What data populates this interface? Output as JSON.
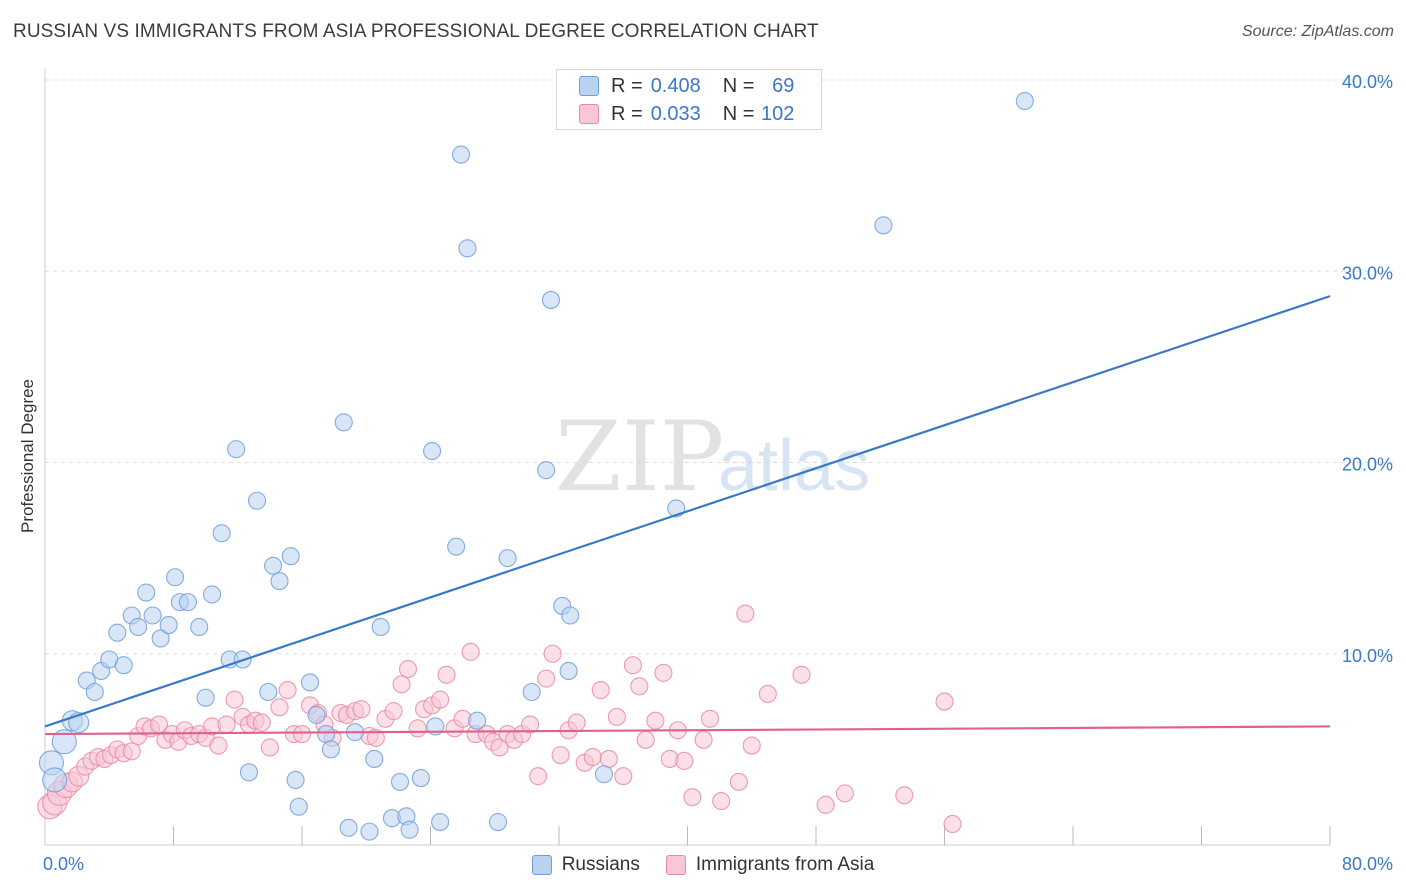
{
  "header": {
    "title": "RUSSIAN VS IMMIGRANTS FROM ASIA PROFESSIONAL DEGREE CORRELATION CHART",
    "source": "Source: ZipAtlas.com"
  },
  "watermark": {
    "zip": "ZIP",
    "atlas": "atlas"
  },
  "legend": {
    "r_label": "R =",
    "n_label": "N =",
    "rows": [
      {
        "series": "Russians",
        "r": "0.408",
        "n": "69",
        "color": "#6f9fd8"
      },
      {
        "series": "Immigrants from Asia",
        "r": "0.033",
        "n": "102",
        "color": "#e88aa8"
      }
    ]
  },
  "bottom_legend": {
    "items": [
      "Russians",
      "Immigrants from Asia"
    ]
  },
  "chart_data": {
    "type": "scatter",
    "title": "RUSSIAN VS IMMIGRANTS FROM ASIA PROFESSIONAL DEGREE CORRELATION CHART",
    "xlabel": "",
    "ylabel": "Professional Degree",
    "xlim": [
      0,
      80
    ],
    "ylim": [
      0,
      40
    ],
    "x_tick_labels": [
      "0.0%",
      "80.0%"
    ],
    "y_ticks": [
      10,
      20,
      30,
      40
    ],
    "y_tick_labels": [
      "10.0%",
      "20.0%",
      "30.0%",
      "40.0%"
    ],
    "grid": true,
    "legend_position": "top-center",
    "series": [
      {
        "name": "Russians",
        "color": "#6f9fd8",
        "fill": "#b9d2f2",
        "trend": {
          "x": [
            0,
            80
          ],
          "y": [
            6.2,
            28.7
          ],
          "color": "#3a78c9"
        },
        "points": [
          {
            "x": 0.4,
            "y": 4.3
          },
          {
            "x": 0.6,
            "y": 3.4
          },
          {
            "x": 1.2,
            "y": 5.4
          },
          {
            "x": 1.7,
            "y": 6.5
          },
          {
            "x": 2.1,
            "y": 6.4
          },
          {
            "x": 2.6,
            "y": 8.6
          },
          {
            "x": 3.1,
            "y": 8.0
          },
          {
            "x": 3.5,
            "y": 9.1
          },
          {
            "x": 4.0,
            "y": 9.7
          },
          {
            "x": 4.5,
            "y": 11.1
          },
          {
            "x": 4.9,
            "y": 9.4
          },
          {
            "x": 5.4,
            "y": 12.0
          },
          {
            "x": 5.8,
            "y": 11.4
          },
          {
            "x": 6.3,
            "y": 13.2
          },
          {
            "x": 6.7,
            "y": 12.0
          },
          {
            "x": 7.2,
            "y": 10.8
          },
          {
            "x": 7.7,
            "y": 11.5
          },
          {
            "x": 8.1,
            "y": 14.0
          },
          {
            "x": 8.4,
            "y": 12.7
          },
          {
            "x": 8.9,
            "y": 12.7
          },
          {
            "x": 9.6,
            "y": 11.4
          },
          {
            "x": 10.0,
            "y": 7.7
          },
          {
            "x": 10.4,
            "y": 13.1
          },
          {
            "x": 11.0,
            "y": 16.3
          },
          {
            "x": 11.5,
            "y": 9.7
          },
          {
            "x": 11.9,
            "y": 20.7
          },
          {
            "x": 12.3,
            "y": 9.7
          },
          {
            "x": 12.7,
            "y": 3.8
          },
          {
            "x": 13.2,
            "y": 18.0
          },
          {
            "x": 13.9,
            "y": 8.0
          },
          {
            "x": 14.2,
            "y": 14.6
          },
          {
            "x": 14.6,
            "y": 13.8
          },
          {
            "x": 15.3,
            "y": 15.1
          },
          {
            "x": 15.6,
            "y": 3.4
          },
          {
            "x": 15.8,
            "y": 2.0
          },
          {
            "x": 16.5,
            "y": 8.5
          },
          {
            "x": 16.9,
            "y": 6.8
          },
          {
            "x": 17.5,
            "y": 5.8
          },
          {
            "x": 17.8,
            "y": 5.0
          },
          {
            "x": 18.6,
            "y": 22.1
          },
          {
            "x": 18.9,
            "y": 0.9
          },
          {
            "x": 19.3,
            "y": 5.9
          },
          {
            "x": 20.2,
            "y": 0.7
          },
          {
            "x": 20.5,
            "y": 4.5
          },
          {
            "x": 20.9,
            "y": 11.4
          },
          {
            "x": 21.6,
            "y": 1.4
          },
          {
            "x": 22.1,
            "y": 3.3
          },
          {
            "x": 22.5,
            "y": 1.5
          },
          {
            "x": 22.7,
            "y": 0.8
          },
          {
            "x": 23.4,
            "y": 3.5
          },
          {
            "x": 24.1,
            "y": 20.6
          },
          {
            "x": 24.3,
            "y": 6.2
          },
          {
            "x": 24.6,
            "y": 1.2
          },
          {
            "x": 25.6,
            "y": 15.6
          },
          {
            "x": 25.9,
            "y": 36.1
          },
          {
            "x": 26.3,
            "y": 31.2
          },
          {
            "x": 26.9,
            "y": 6.5
          },
          {
            "x": 28.2,
            "y": 1.2
          },
          {
            "x": 28.8,
            "y": 15.0
          },
          {
            "x": 30.3,
            "y": 8.0
          },
          {
            "x": 31.2,
            "y": 19.6
          },
          {
            "x": 31.5,
            "y": 28.5
          },
          {
            "x": 32.2,
            "y": 12.5
          },
          {
            "x": 32.7,
            "y": 12.0
          },
          {
            "x": 32.6,
            "y": 9.1
          },
          {
            "x": 34.8,
            "y": 3.7
          },
          {
            "x": 39.3,
            "y": 17.6
          },
          {
            "x": 52.2,
            "y": 32.4
          },
          {
            "x": 61.0,
            "y": 38.9
          }
        ]
      },
      {
        "name": "Immigrants from Asia",
        "color": "#e88aa8",
        "fill": "#f8c6d6",
        "trend": {
          "x": [
            0,
            80
          ],
          "y": [
            5.8,
            6.2
          ],
          "color": "#e0628c"
        },
        "points": [
          {
            "x": 0.3,
            "y": 2.0
          },
          {
            "x": 0.6,
            "y": 2.2
          },
          {
            "x": 0.9,
            "y": 2.7
          },
          {
            "x": 1.3,
            "y": 3.1
          },
          {
            "x": 1.7,
            "y": 3.3
          },
          {
            "x": 2.1,
            "y": 3.6
          },
          {
            "x": 2.5,
            "y": 4.1
          },
          {
            "x": 2.9,
            "y": 4.4
          },
          {
            "x": 3.3,
            "y": 4.6
          },
          {
            "x": 3.7,
            "y": 4.5
          },
          {
            "x": 4.1,
            "y": 4.7
          },
          {
            "x": 4.5,
            "y": 5.0
          },
          {
            "x": 4.9,
            "y": 4.8
          },
          {
            "x": 5.4,
            "y": 4.9
          },
          {
            "x": 5.8,
            "y": 5.7
          },
          {
            "x": 6.2,
            "y": 6.2
          },
          {
            "x": 6.6,
            "y": 6.1
          },
          {
            "x": 7.1,
            "y": 6.3
          },
          {
            "x": 7.5,
            "y": 5.5
          },
          {
            "x": 7.9,
            "y": 5.8
          },
          {
            "x": 8.3,
            "y": 5.4
          },
          {
            "x": 8.7,
            "y": 6.0
          },
          {
            "x": 9.1,
            "y": 5.7
          },
          {
            "x": 9.6,
            "y": 5.8
          },
          {
            "x": 10.0,
            "y": 5.6
          },
          {
            "x": 10.4,
            "y": 6.2
          },
          {
            "x": 10.8,
            "y": 5.2
          },
          {
            "x": 11.3,
            "y": 6.3
          },
          {
            "x": 11.8,
            "y": 7.6
          },
          {
            "x": 12.3,
            "y": 6.7
          },
          {
            "x": 12.7,
            "y": 6.3
          },
          {
            "x": 13.1,
            "y": 6.5
          },
          {
            "x": 13.5,
            "y": 6.4
          },
          {
            "x": 14.0,
            "y": 5.1
          },
          {
            "x": 14.6,
            "y": 7.2
          },
          {
            "x": 15.1,
            "y": 8.1
          },
          {
            "x": 15.5,
            "y": 5.8
          },
          {
            "x": 16.0,
            "y": 5.8
          },
          {
            "x": 16.5,
            "y": 7.3
          },
          {
            "x": 17.0,
            "y": 6.9
          },
          {
            "x": 17.4,
            "y": 6.3
          },
          {
            "x": 17.9,
            "y": 5.6
          },
          {
            "x": 18.4,
            "y": 6.9
          },
          {
            "x": 18.8,
            "y": 6.8
          },
          {
            "x": 19.3,
            "y": 7.0
          },
          {
            "x": 19.7,
            "y": 7.1
          },
          {
            "x": 20.2,
            "y": 5.7
          },
          {
            "x": 20.6,
            "y": 5.6
          },
          {
            "x": 21.2,
            "y": 6.6
          },
          {
            "x": 21.7,
            "y": 7.0
          },
          {
            "x": 22.2,
            "y": 8.4
          },
          {
            "x": 22.6,
            "y": 9.2
          },
          {
            "x": 23.2,
            "y": 6.1
          },
          {
            "x": 23.6,
            "y": 7.1
          },
          {
            "x": 24.1,
            "y": 7.3
          },
          {
            "x": 24.6,
            "y": 7.6
          },
          {
            "x": 25.0,
            "y": 8.9
          },
          {
            "x": 25.5,
            "y": 6.1
          },
          {
            "x": 26.0,
            "y": 6.6
          },
          {
            "x": 26.5,
            "y": 10.1
          },
          {
            "x": 26.8,
            "y": 5.8
          },
          {
            "x": 27.5,
            "y": 5.8
          },
          {
            "x": 27.9,
            "y": 5.4
          },
          {
            "x": 28.3,
            "y": 5.1
          },
          {
            "x": 28.8,
            "y": 5.8
          },
          {
            "x": 29.2,
            "y": 5.5
          },
          {
            "x": 29.7,
            "y": 5.8
          },
          {
            "x": 30.2,
            "y": 6.3
          },
          {
            "x": 30.7,
            "y": 3.6
          },
          {
            "x": 31.2,
            "y": 8.7
          },
          {
            "x": 31.6,
            "y": 10.0
          },
          {
            "x": 32.1,
            "y": 4.7
          },
          {
            "x": 32.6,
            "y": 6.0
          },
          {
            "x": 33.1,
            "y": 6.4
          },
          {
            "x": 33.6,
            "y": 4.3
          },
          {
            "x": 34.1,
            "y": 4.6
          },
          {
            "x": 34.6,
            "y": 8.1
          },
          {
            "x": 35.1,
            "y": 4.5
          },
          {
            "x": 35.6,
            "y": 6.7
          },
          {
            "x": 36.0,
            "y": 3.6
          },
          {
            "x": 36.6,
            "y": 9.4
          },
          {
            "x": 37.0,
            "y": 8.3
          },
          {
            "x": 37.4,
            "y": 5.5
          },
          {
            "x": 38.0,
            "y": 6.5
          },
          {
            "x": 38.5,
            "y": 9.0
          },
          {
            "x": 38.9,
            "y": 4.5
          },
          {
            "x": 39.4,
            "y": 6.0
          },
          {
            "x": 39.8,
            "y": 4.4
          },
          {
            "x": 40.3,
            "y": 2.5
          },
          {
            "x": 41.0,
            "y": 5.5
          },
          {
            "x": 41.4,
            "y": 6.6
          },
          {
            "x": 42.1,
            "y": 2.3
          },
          {
            "x": 43.2,
            "y": 3.3
          },
          {
            "x": 43.6,
            "y": 12.1
          },
          {
            "x": 44.0,
            "y": 5.2
          },
          {
            "x": 45.0,
            "y": 7.9
          },
          {
            "x": 47.1,
            "y": 8.9
          },
          {
            "x": 48.6,
            "y": 2.1
          },
          {
            "x": 49.8,
            "y": 2.7
          },
          {
            "x": 53.5,
            "y": 2.6
          },
          {
            "x": 56.0,
            "y": 7.5
          },
          {
            "x": 56.5,
            "y": 1.1
          }
        ]
      }
    ]
  }
}
